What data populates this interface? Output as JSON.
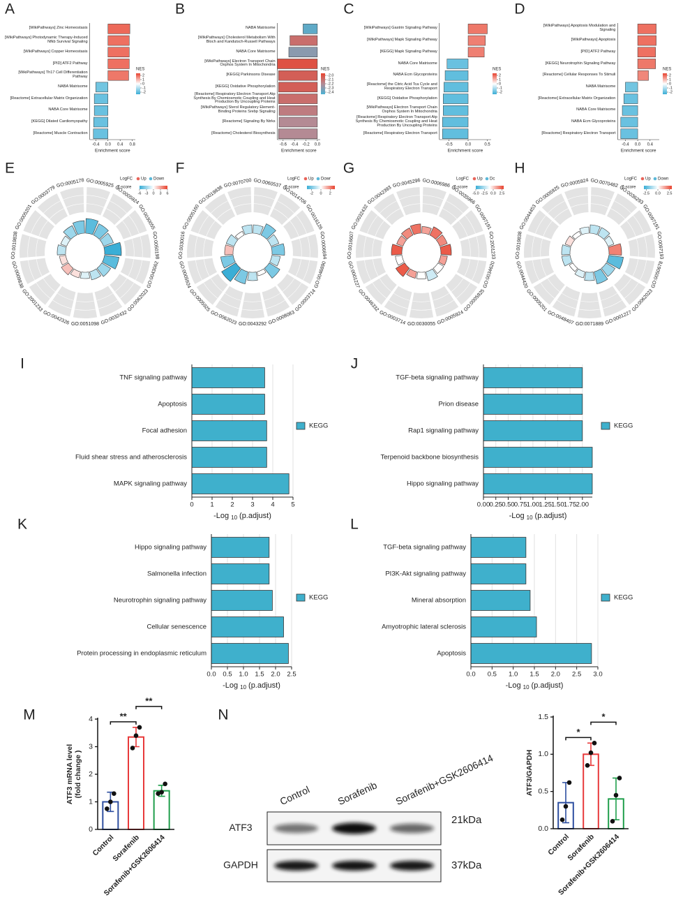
{
  "chart_data": [
    {
      "type": "enrichment",
      "panel": "A",
      "categories": [
        "[WikiPathways] Zinc Homeostasis",
        "[WikiPathways] Photodynamic Therapy-Induced Nfkb Survival Signaling",
        "[WikiPathways] Copper Homeostasis",
        "[PID] ATF2 Pathway",
        "[WikiPathways] Th17 Cell Differentiation Pathway",
        "NABA Matrisome",
        "[Reactome] Extracellular Matrix Organization",
        "NABA Core Matrisome",
        "[KEGG] Dilated Cardiomyopathy",
        "[Reactome] Muscle Contraction"
      ],
      "values": [
        0.72,
        0.7,
        0.7,
        0.7,
        0.68,
        -0.4,
        -0.45,
        -0.45,
        -0.47,
        -0.48
      ],
      "nes": [
        2.0,
        1.9,
        1.9,
        1.9,
        1.8,
        -1.8,
        -1.9,
        -1.9,
        -1.9,
        -1.9
      ],
      "x_label": "Enrichment score",
      "legend_title": "NES",
      "xlim": [
        -0.6,
        0.9
      ],
      "xticks": [
        -0.4,
        {
          "value": 0,
          "label": "0.0"
        },
        0.4,
        0.8
      ],
      "nes_lim": [
        -2.5,
        2.5
      ],
      "nes_ticks": [
        2,
        1,
        0,
        -1,
        -2
      ],
      "nes_colors": [
        "#3aaed6",
        "#ffffff",
        "#e8432f"
      ]
    },
    {
      "type": "enrichment",
      "panel": "B",
      "categories": [
        "NABA Matrisome",
        "[WikiPathways] Cholesterol Metabolism With Bloch and Kandutsch-Russell Pathways",
        "NABA Core Matrisome",
        "[WikiPathways] Electron Transport Chain Oxphos System In Mitochondria",
        "[KEGG] Parkinsons Disease",
        "[KEGG] Oxidative Phosphorylation",
        "[Reactome] Respiratory Electron Transport Atp Synthesis By Chemiosmotic Coupling and Heat Production By Uncoupling Proteins",
        "[WikiPathways] Sterol Regulatory Element-Binding Proteins Srebp Signaling",
        "[Reactome] Signaling By Ntrks",
        "[Reactome] Cholesterol Biosynthesis"
      ],
      "values": [
        -0.25,
        -0.48,
        -0.5,
        -0.7,
        -0.68,
        -0.68,
        -0.68,
        -0.67,
        -0.67,
        -0.68
      ],
      "nes": [
        -2.4,
        -2.1,
        -2.3,
        -2.0,
        -2.05,
        -2.05,
        -2.1,
        -2.15,
        -2.2,
        -2.2
      ],
      "x_label": "Enrichment score",
      "legend_title": "NES",
      "xlim": [
        -0.7,
        0.05
      ],
      "xticks": [
        -0.6,
        -0.4,
        -0.2,
        {
          "value": 0,
          "label": "0.0"
        }
      ],
      "nes_lim": [
        -2.45,
        -1.95
      ],
      "nes_ticks": [
        {
          "value": -2,
          "label": "-2.0"
        },
        -2.1,
        -2.2,
        -2.3,
        -2.4
      ],
      "nes_colors": [
        "#4ab2d4",
        "#b48a94",
        "#e8432f"
      ]
    },
    {
      "type": "enrichment",
      "panel": "C",
      "categories": [
        "[WikiPathways] Gastrin Signaling Pathway",
        "[WikiPathways] Mapk Signaling Pathway",
        "[KEGG] Mapk Signaling Pathway",
        "NABA Core Matrisome",
        "NABA Ecm Glycoproteins",
        "[Reactome] the Citric Acid Tca Cycle and Respiratory Electron Transport",
        "[KEGG] Oxidative Phosphorylation",
        "[WikiPathways] Electron Transport Chain Oxphos System In Mitochondria",
        "[Reactome] Respiratory Electron Transport Atp Synthesis By Chemiosmotic Coupling and Heat Production By Uncoupling Proteins",
        "[Reactome] Respiratory Electron Transport"
      ],
      "values": [
        0.5,
        0.45,
        0.42,
        -0.55,
        -0.6,
        -0.63,
        -0.65,
        -0.65,
        -0.67,
        -0.67
      ],
      "nes": [
        1.8,
        1.7,
        1.7,
        -1.9,
        -2.0,
        -2.0,
        -2.0,
        -2.0,
        -2.0,
        -2.0
      ],
      "x_label": "Enrichment score",
      "legend_title": "NES",
      "xlim": [
        -0.75,
        0.6
      ],
      "xticks": [
        -0.5,
        {
          "value": 0,
          "label": "0.0"
        },
        0.5
      ],
      "nes_lim": [
        -2.5,
        2.5
      ],
      "nes_ticks": [
        2,
        1,
        0,
        -1,
        -2
      ],
      "nes_colors": [
        "#3aaed6",
        "#ffffff",
        "#e8432f"
      ]
    },
    {
      "type": "enrichment",
      "panel": "D",
      "categories": [
        "[WikiPathways] Apoptosis Modulation and Signaling",
        "[WikiPathways] Apoptosis",
        "[PID] ATF2 Pathway",
        "[KEGG] Neurotrophin Signaling Pathway",
        "[Reactome] Cellular Responses To Stimuli",
        "NABA Matrisome",
        "[Reactome] Extracellular Matrix Organization",
        "NABA Core Matrisome",
        "NABA Ecm Glycoproteins",
        "[Reactome] Respiratory Electron Transport"
      ],
      "values": [
        0.6,
        0.6,
        0.58,
        0.58,
        0.35,
        -0.4,
        -0.45,
        -0.5,
        -0.55,
        -0.55
      ],
      "nes": [
        1.9,
        1.9,
        1.9,
        1.8,
        1.6,
        -1.8,
        -1.9,
        -1.9,
        -1.9,
        -1.9
      ],
      "x_label": "Enrichment score",
      "legend_title": "NES",
      "xlim": [
        -0.65,
        0.7
      ],
      "xticks": [
        -0.4,
        {
          "value": 0,
          "label": "0.0"
        },
        0.4
      ],
      "nes_lim": [
        -2.5,
        2.5
      ],
      "nes_ticks": [
        2,
        1,
        0,
        -1,
        -2
      ],
      "nes_colors": [
        "#3aaed6",
        "#ffffff",
        "#e8432f"
      ]
    },
    {
      "type": "circular",
      "panel": "E",
      "terms": [
        "GO:0005925",
        "GO:0005924",
        "GO:0030055",
        "GO:0050198",
        "GO:0043062",
        "GO:0062023",
        "GO:0032432",
        "GO:0051098",
        "GO:0042326",
        "GO:2001233",
        "GO:0009838",
        "GO:0019838",
        "GO:0005201",
        "GO:0003779",
        "GO:0005178"
      ],
      "zscores": [
        -5,
        -4,
        -3,
        -6,
        -5,
        -3,
        -2,
        -1,
        1,
        2,
        1,
        -2,
        -1,
        -3,
        -4
      ],
      "zlim": [
        -6,
        6
      ],
      "zticks": [
        -6,
        -3,
        0,
        3,
        6
      ],
      "z_colors": [
        "#3aaed6",
        "#ffffff",
        "#e8432f"
      ],
      "legend_title": "LogFC",
      "legend_up": "Up",
      "legend_down": "Down",
      "up_color": "#e8645a",
      "down_color": "#5bb8d8",
      "z_label": "Z-score"
    },
    {
      "type": "circular",
      "panel": "F",
      "terms": [
        "GO:0060537",
        "GO:0014706",
        "GO:0016126",
        "GO:0006694",
        "GO:0046890",
        "GO:0003714",
        "GO:0008083",
        "GO:0043292",
        "GO:0062023",
        "GO:0005925",
        "GO:0005924",
        "GO:0030016",
        "GO:0005160",
        "GO:0019838",
        "GO:0070700"
      ],
      "zscores": [
        -1,
        -2,
        -1,
        -2,
        -1,
        -2,
        0,
        -1,
        -2,
        -3,
        -2,
        1,
        -1,
        0,
        -1
      ],
      "zlim": [
        -3,
        3
      ],
      "zticks": [
        -2,
        0,
        2
      ],
      "z_colors": [
        "#3aaed6",
        "#ffffff",
        "#e8432f"
      ],
      "legend_title": "LogFC",
      "legend_up": "Up",
      "legend_down": "Dowr",
      "up_color": "#e8645a",
      "down_color": "#5bb8d8",
      "z_label": "Z-score"
    },
    {
      "type": "circular",
      "panel": "G",
      "terms": [
        "GO:0006986",
        "GO:0035966",
        "GO:0097191",
        "GO:2001233",
        "GO:0034620",
        "GO:0005925",
        "GO:0005924",
        "GO:0030055",
        "GO:0003714",
        "GO:0046332",
        "GO:0001227",
        "GO:0016607",
        "GO:0032432",
        "GO:0042393",
        "GO:0045296"
      ],
      "zscores": [
        1,
        2,
        1.5,
        2.5,
        1,
        -1,
        -2,
        -1,
        1,
        2.5,
        -1,
        2.5,
        1,
        1.5,
        2
      ],
      "zlim": [
        -5,
        3
      ],
      "zticks": [
        {
          "value": -5,
          "label": "-5.0"
        },
        -2.5,
        {
          "value": 0,
          "label": "0.0"
        },
        2.5
      ],
      "z_colors": [
        "#3aaed6",
        "#ffffff",
        "#e8432f"
      ],
      "legend_title": "LogFC",
      "legend_up": "Up",
      "legend_down": "Dc",
      "up_color": "#e8645a",
      "down_color": "#5bb8d8",
      "z_label": "Z-score"
    },
    {
      "type": "circular",
      "panel": "H",
      "terms": [
        "GO:0070482",
        "GO:0036293",
        "GO:0097191",
        "GO:0097193",
        "GO:0050678",
        "GO:0062023",
        "GO:0001227",
        "GO:0071889",
        "GO:0048407",
        "GO:0005201",
        "GO:0044420",
        "GO:0019838",
        "GO:0044453",
        "GO:0005925",
        "GO:0005924"
      ],
      "zscores": [
        -1,
        -1,
        -0.5,
        2,
        -2.5,
        -1.5,
        -2,
        -1,
        -0.5,
        0,
        -1,
        -1,
        0.5,
        0,
        -0.5
      ],
      "zlim": [
        -3,
        3
      ],
      "zticks": [
        -2.5,
        {
          "value": 0,
          "label": "0.0"
        },
        2.5
      ],
      "z_colors": [
        "#3aaed6",
        "#ffffff",
        "#e8432f"
      ],
      "legend_title": "LogFC",
      "legend_up": "Up",
      "legend_down": "Down",
      "up_color": "#e8645a",
      "down_color": "#5bb8d8",
      "z_label": "Z-score"
    },
    {
      "type": "hbar",
      "panel": "I",
      "categories": [
        "TNF signaling pathway",
        "Apoptosis",
        "Focal adhesion",
        "Fluid shear stress and atherosclerosis",
        "MAPK signaling pathway"
      ],
      "values": [
        3.6,
        3.6,
        3.7,
        3.7,
        4.8
      ],
      "color": "#3fb0cc",
      "legend": "KEGG",
      "x_label": "-Log",
      "x_label_sub": "10",
      "x_label_rest": "(p.adjust)",
      "xlim": [
        0,
        5
      ],
      "xticks": [
        0,
        1,
        2,
        3,
        4,
        5
      ],
      "grid": true
    },
    {
      "type": "hbar",
      "panel": "J",
      "categories": [
        "TGF-beta signaling pathway",
        "Prion disease",
        "Rap1 signaling pathway",
        "Terpenoid backbone biosynthesis",
        "Hippo signaling pathway"
      ],
      "values": [
        2.0,
        2.0,
        2.0,
        2.2,
        2.2
      ],
      "color": "#3fb0cc",
      "legend": "KEGG",
      "x_label": "-Log",
      "x_label_sub": "10",
      "x_label_rest": "(p.adjust)",
      "xlim": [
        0,
        2.2
      ],
      "xticks": [
        {
          "value": 0,
          "label": "0.00"
        },
        0.25,
        {
          "value": 0.5,
          "label": "0.50"
        },
        0.75,
        {
          "value": 1,
          "label": "1.00"
        },
        1.25,
        {
          "value": 1.5,
          "label": "1.50"
        },
        1.75,
        {
          "value": 2,
          "label": "2.00"
        }
      ],
      "grid": true
    },
    {
      "type": "hbar",
      "panel": "K",
      "categories": [
        "Hippo signaling pathway",
        "Salmonella infection",
        "Neurotrophin signaling pathway",
        "Cellular senescence",
        "Protein processing in endoplasmic reticulum"
      ],
      "values": [
        1.8,
        1.8,
        1.9,
        2.25,
        2.4
      ],
      "color": "#3fb0cc",
      "legend": "KEGG",
      "x_label": "-Log",
      "x_label_sub": "10",
      "x_label_rest": "(p.adjust)",
      "xlim": [
        0,
        2.5
      ],
      "xticks": [
        {
          "value": 0,
          "label": "0.0"
        },
        0.5,
        {
          "value": 1,
          "label": "1.0"
        },
        1.5,
        {
          "value": 2,
          "label": "2.0"
        },
        2.5
      ],
      "grid": true
    },
    {
      "type": "hbar",
      "panel": "L",
      "categories": [
        "TGF-beta signaling pathway",
        "PI3K-Akt signaling pathway",
        "Mineral absorption",
        "Amyotrophic lateral sclerosis",
        "Apoptosis"
      ],
      "values": [
        1.3,
        1.3,
        1.4,
        1.55,
        2.85
      ],
      "color": "#3fb0cc",
      "legend": "KEGG",
      "x_label": "-Log",
      "x_label_sub": "10",
      "x_label_rest": "(p.adjust)",
      "xlim": [
        0,
        3
      ],
      "xticks": [
        {
          "value": 0,
          "label": "0.0"
        },
        0.5,
        {
          "value": 1,
          "label": "1.0"
        },
        1.5,
        {
          "value": 2,
          "label": "2.0"
        },
        2.5,
        {
          "value": 3,
          "label": "3.0"
        }
      ],
      "grid": true
    },
    {
      "type": "bar",
      "panel": "M",
      "categories": [
        "Control",
        "Sorafenib",
        "Sorafenib+GSK2606414"
      ],
      "values": [
        1.0,
        3.35,
        1.4
      ],
      "errors": [
        0.35,
        0.35,
        0.2
      ],
      "points": [
        [
          0.75,
          1.0,
          1.3
        ],
        [
          2.95,
          3.4,
          3.7
        ],
        [
          1.3,
          1.35,
          1.65
        ]
      ],
      "colors": [
        "#2d4ea0",
        "#e8393a",
        "#1f9e4b"
      ],
      "y_label": [
        "ATF3 mRNA level",
        "(fold change )"
      ],
      "ylim": [
        0,
        4
      ],
      "yticks": [
        0,
        1,
        2,
        3,
        4
      ],
      "significance": [
        {
          "from": 0,
          "to": 1,
          "label": "**"
        },
        {
          "from": 1,
          "to": 2,
          "label": "**"
        }
      ]
    },
    {
      "type": "blot",
      "panel": "N",
      "lanes": [
        "Control",
        "Sorafenib",
        "Sorafenib+GSK2606414"
      ],
      "rows": [
        {
          "name": "ATF3",
          "size": "21kDa"
        },
        {
          "name": "GAPDH",
          "size": "37kDa"
        }
      ]
    },
    {
      "type": "bar",
      "categories": [
        "Control",
        "Sorafenib",
        "Sorafenib+GSK2606414"
      ],
      "values": [
        0.35,
        1.0,
        0.4
      ],
      "errors": [
        0.27,
        0.15,
        0.28
      ],
      "points": [
        [
          0.12,
          0.3,
          0.62
        ],
        [
          0.85,
          1.02,
          1.15
        ],
        [
          0.1,
          0.45,
          0.68
        ]
      ],
      "colors": [
        "#2d4ea0",
        "#e8393a",
        "#1f9e4b"
      ],
      "y_label": [
        "ATF3/GAPDH"
      ],
      "ylim": [
        0,
        1.5
      ],
      "yticks": [
        {
          "value": 0,
          "label": "0.0"
        },
        0.5,
        {
          "value": 1,
          "label": "1.0"
        },
        1.5
      ],
      "significance": [
        {
          "from": 0,
          "to": 1,
          "label": "*"
        },
        {
          "from": 1,
          "to": 2,
          "label": "*"
        }
      ]
    }
  ]
}
